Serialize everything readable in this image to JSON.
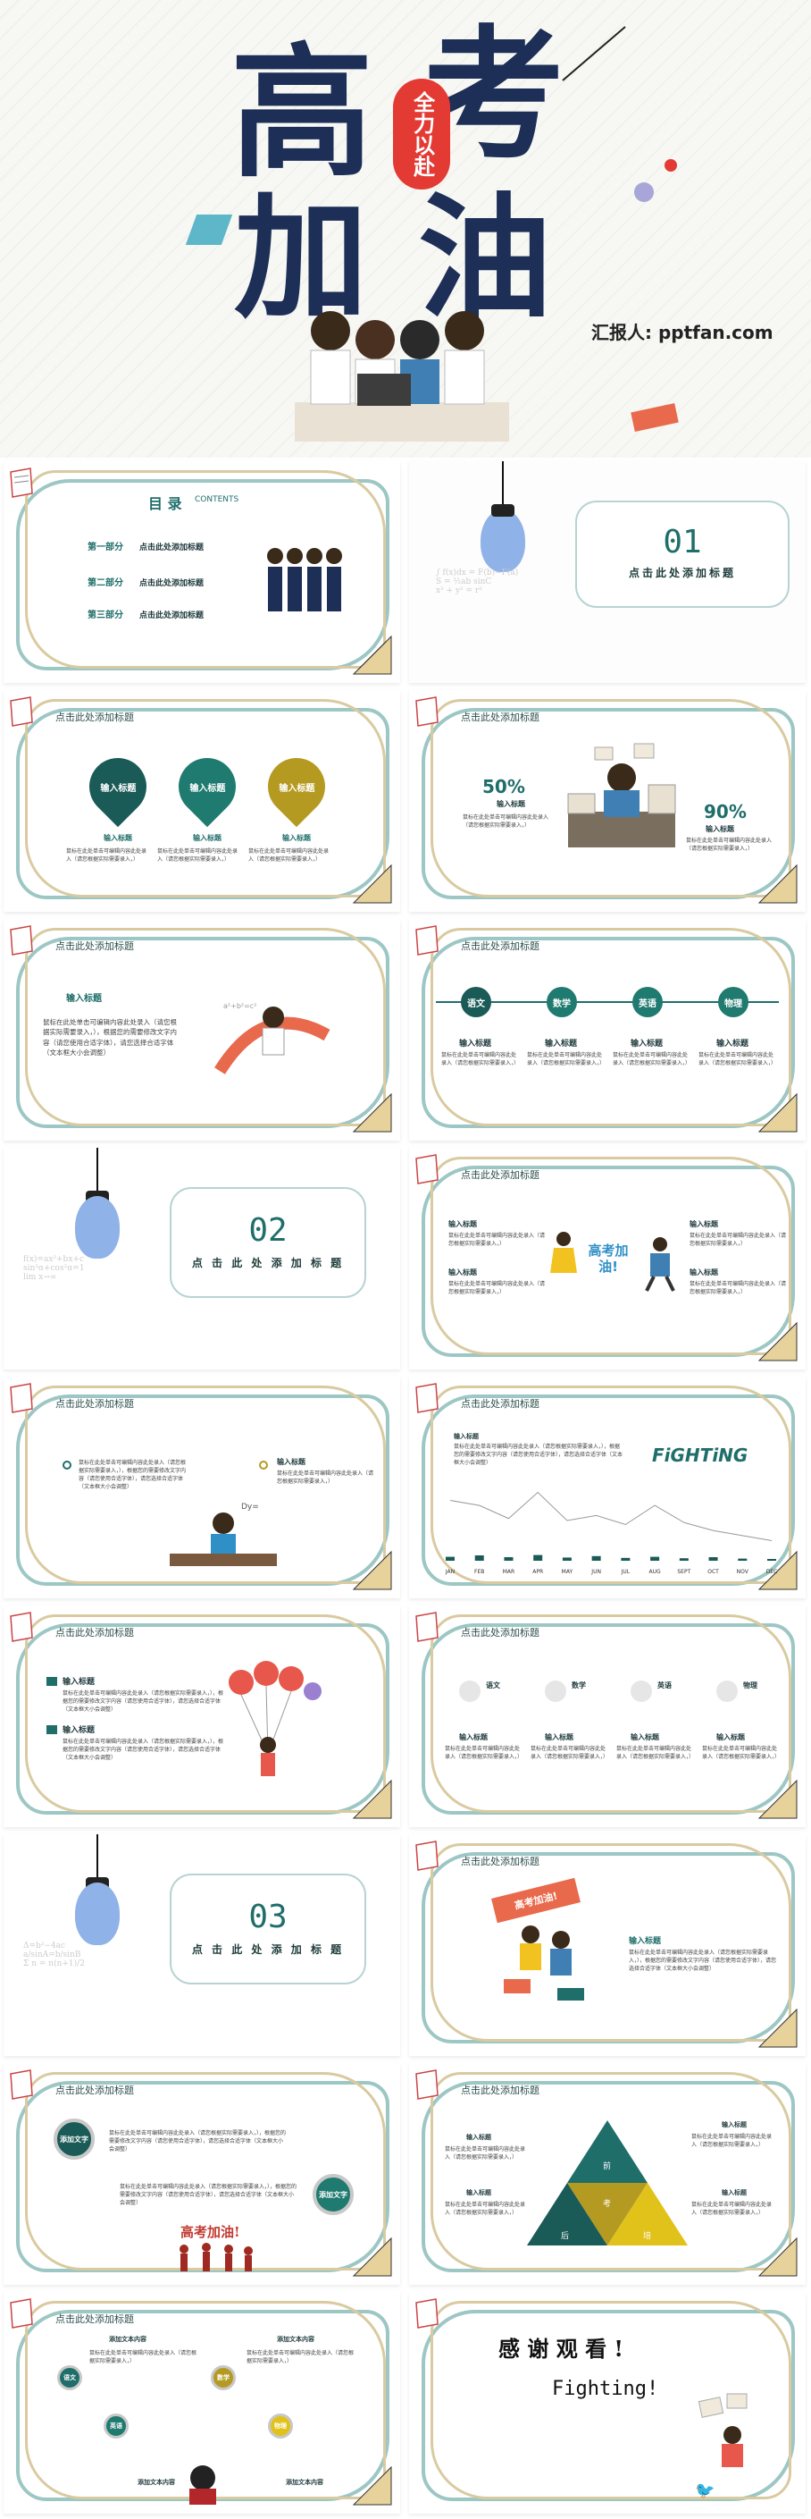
{
  "hero": {
    "line1": [
      "高",
      "考"
    ],
    "line2": [
      "加",
      "油"
    ],
    "badge": "全力以赴",
    "reporter": "汇报人: pptfan.com"
  },
  "common": {
    "slide_title": "点击此处添加标题",
    "input_title": "输入标题",
    "body": "鼠标在此处单击可编辑内容此处录入（请您根据实际需要录入，）",
    "body2": "根据您的需要修改文字内容，请您使用合适字体",
    "body_long": "鼠标在此处单击可编辑内容此处录入（请您根据实际需要录入，），根据您的需要修改文字内容（请您使用合适字体），请您选择合适字体（文本框大小会调整）"
  },
  "toc": {
    "title": "目 录",
    "subtitle": "CONTENTS",
    "items": [
      {
        "part": "第一部分",
        "text": "点击此处添加标题"
      },
      {
        "part": "第二部分",
        "text": "点击此处添加标题"
      },
      {
        "part": "第三部分",
        "text": "点击此处添加标题"
      }
    ]
  },
  "sections": [
    {
      "num": "01",
      "title": "点击此处添加标题"
    },
    {
      "num": "02",
      "title": "点 击 此 处 添 加 标 题"
    },
    {
      "num": "03",
      "title": "点 击 此 处 添 加 标 题"
    }
  ],
  "percent": {
    "left": "50%",
    "right": "90%"
  },
  "subjects": [
    "语文",
    "数学",
    "英语",
    "物理"
  ],
  "cheer": "高考加油!",
  "fighting": "FiGHTiNG",
  "months": [
    "JAN",
    "FEB",
    "MAR",
    "APR",
    "MAY",
    "JUN",
    "JUL",
    "AUG",
    "SEPT",
    "OCT",
    "NOV",
    "DEC"
  ],
  "circle_items": [
    {
      "label": "添加文字"
    },
    {
      "label": "添加文字"
    }
  ],
  "pyramid": {
    "a": "前",
    "b": "考",
    "c": "后",
    "d": "培"
  },
  "thanks": {
    "title": "感 谢 观 看 !",
    "sub": "Fighting!"
  },
  "flow": {
    "head": "添加文本内容"
  },
  "chart_data": {
    "type": "line",
    "categories": [
      "JAN",
      "FEB",
      "MAR",
      "APR",
      "MAY",
      "JUN",
      "JUL",
      "AUG",
      "SEPT",
      "OCT",
      "NOV",
      "DEC"
    ],
    "values": [
      60,
      55,
      42,
      68,
      40,
      45,
      36,
      55,
      38,
      30,
      25,
      20
    ],
    "bars": [
      22,
      30,
      20,
      32,
      18,
      26,
      16,
      22,
      14,
      20,
      12,
      10
    ]
  },
  "colors": {
    "teal": "#1f6e6a",
    "dark_teal": "#1a5a57",
    "olive": "#b59a22",
    "red": "#e33a34",
    "navy": "#1d2f57",
    "yellow": "#e1c21a"
  }
}
